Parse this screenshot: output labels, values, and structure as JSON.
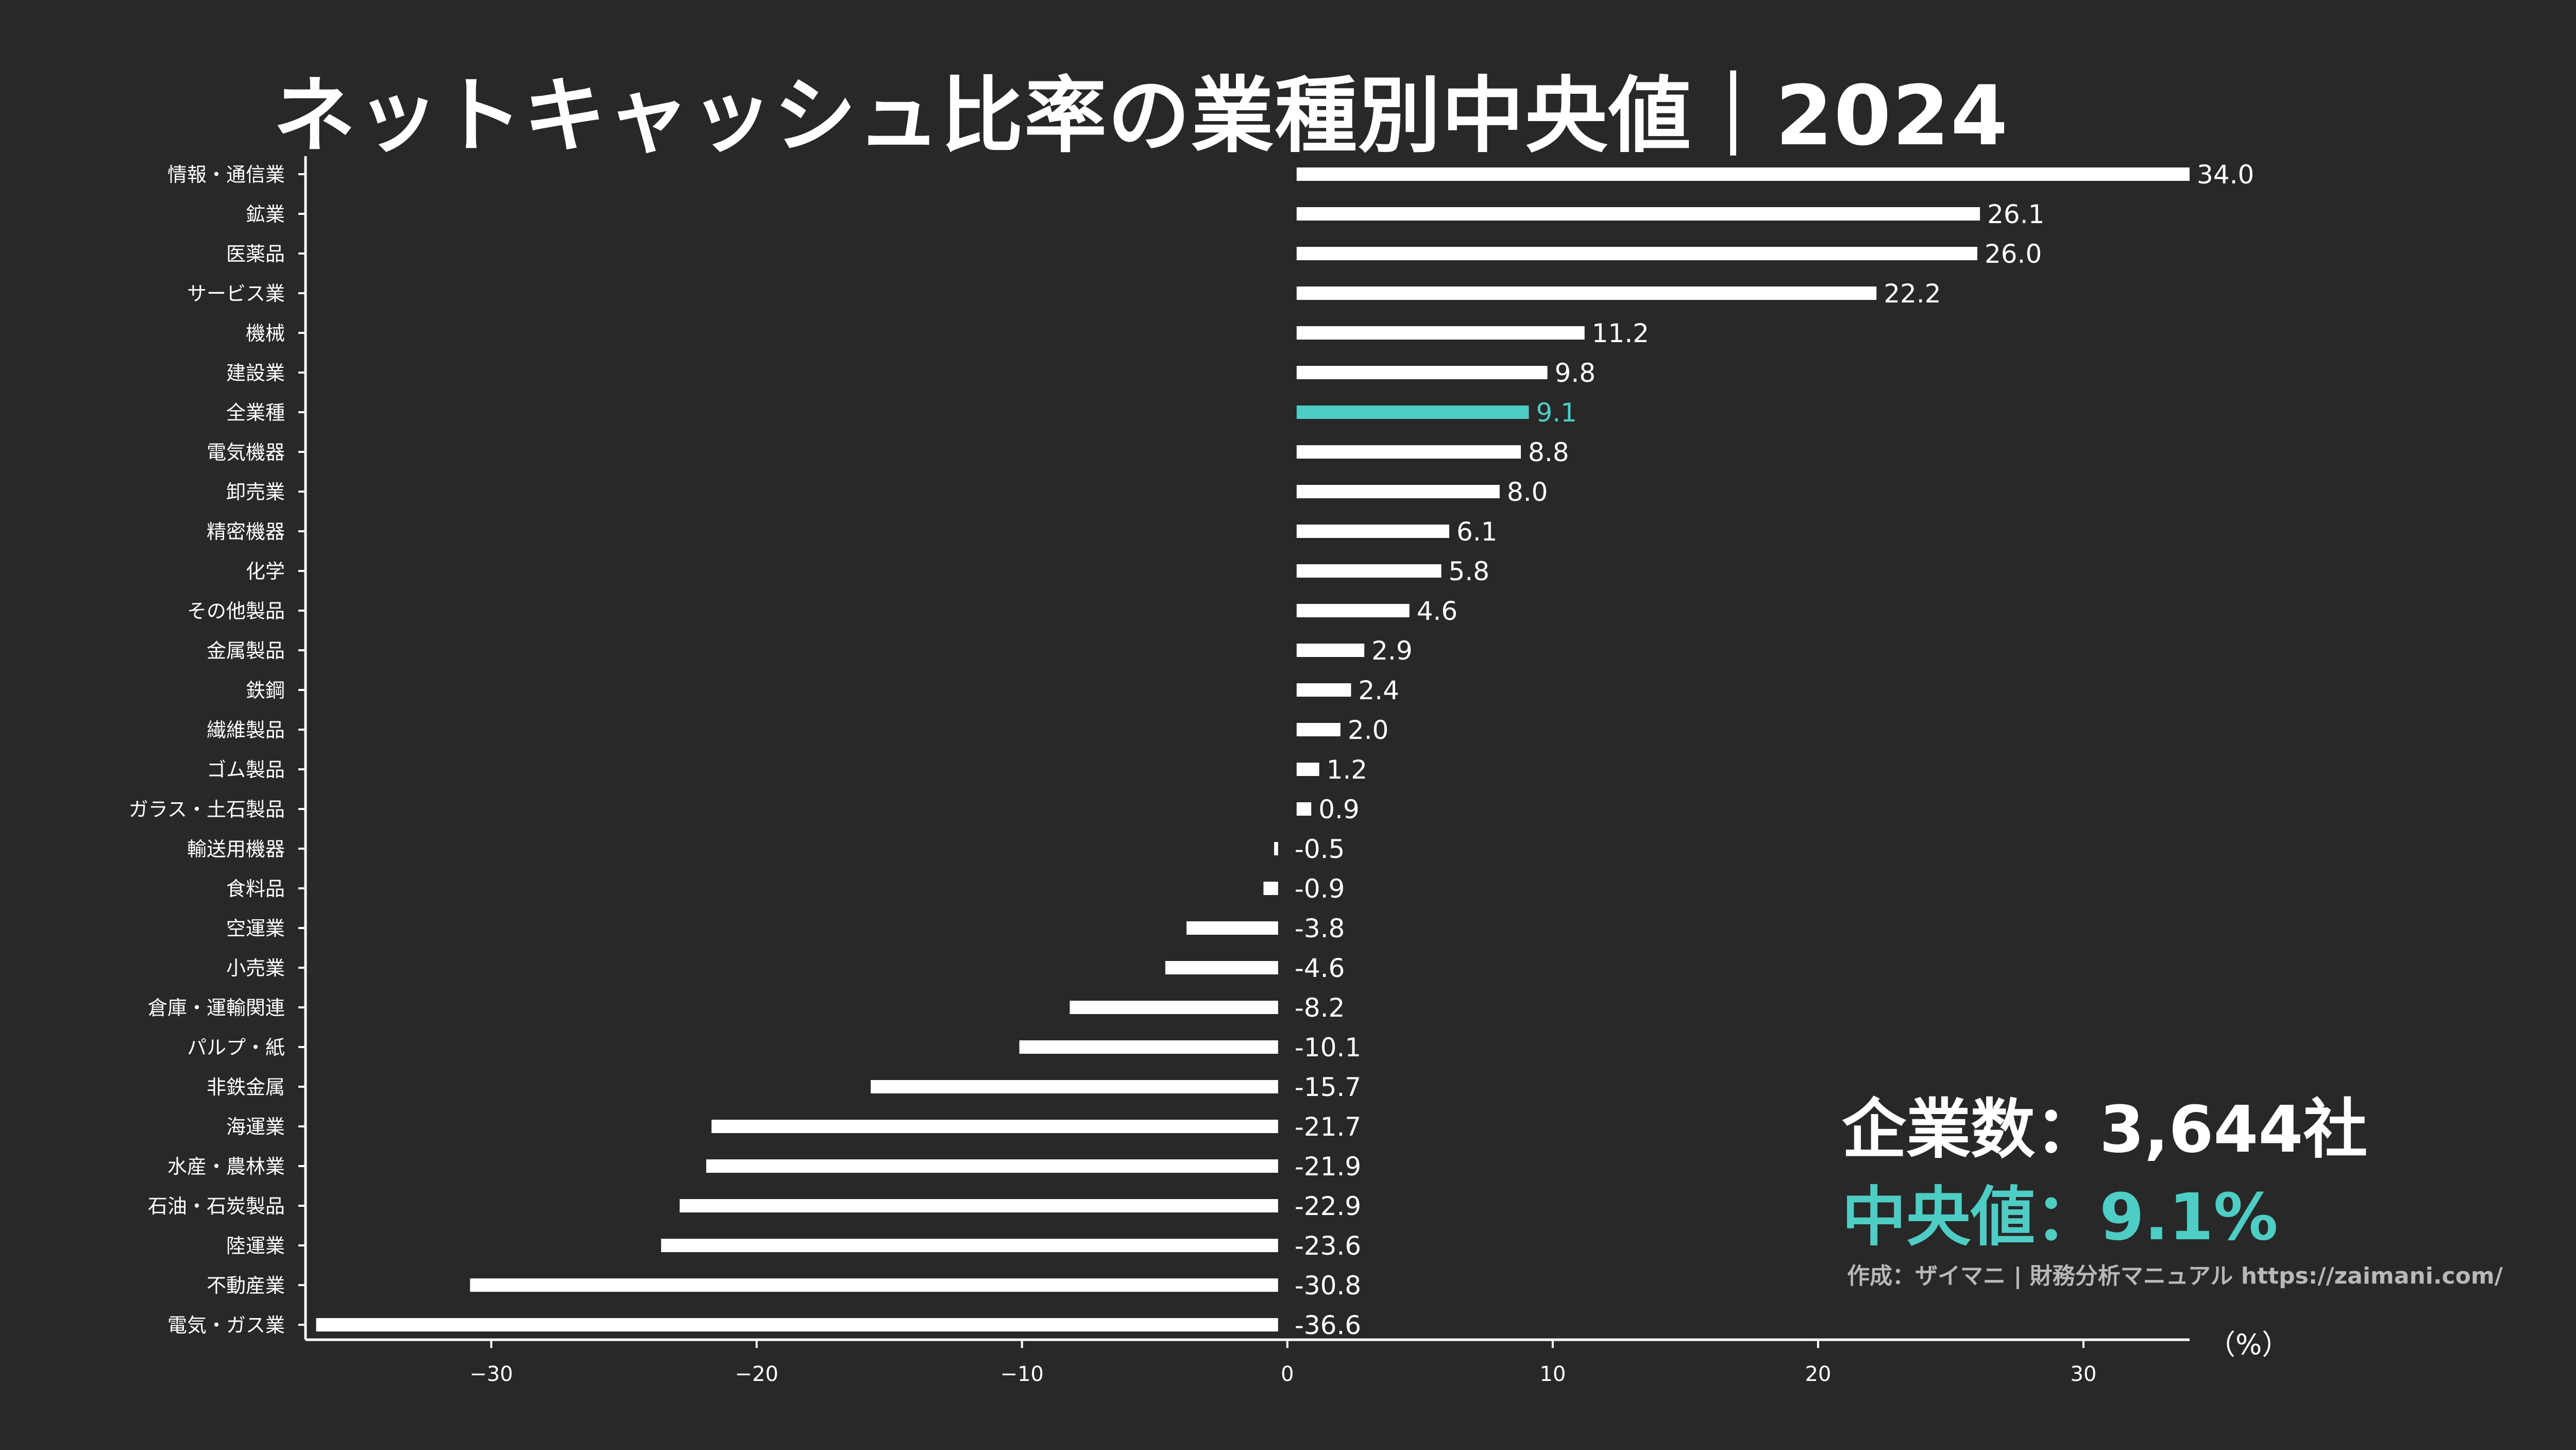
{
  "title": "ネットキャッシュ比率の業種別中央値｜2024",
  "summary": {
    "companies_label": "企業数：3,644社",
    "median_label": "中央値：9.1%"
  },
  "credit": "作成：ザイマニ | 財務分析マニュアル https://zaimani.com/",
  "unit_label": "（%）",
  "colors": {
    "background": "#282828",
    "bar": "#ffffff",
    "highlight": "#4ecdc4"
  },
  "chart_data": {
    "type": "bar",
    "orientation": "horizontal",
    "title": "ネットキャッシュ比率の業種別中央値｜2024",
    "xlabel": "（%）",
    "ylabel": "",
    "xlim": [
      -37,
      34
    ],
    "xticks": [
      -30,
      -20,
      -10,
      0,
      10,
      20,
      30
    ],
    "xtick_labels": [
      "−30",
      "−20",
      "−10",
      "0",
      "10",
      "20",
      "30"
    ],
    "grid": false,
    "highlight_category": "全業種",
    "categories": [
      "情報・通信業",
      "鉱業",
      "医薬品",
      "サービス業",
      "機械",
      "建設業",
      "全業種",
      "電気機器",
      "卸売業",
      "精密機器",
      "化学",
      "その他製品",
      "金属製品",
      "鉄鋼",
      "繊維製品",
      "ゴム製品",
      "ガラス・土石製品",
      "輸送用機器",
      "食料品",
      "空運業",
      "小売業",
      "倉庫・運輸関連",
      "パルプ・紙",
      "非鉄金属",
      "海運業",
      "水産・農林業",
      "石油・石炭製品",
      "陸運業",
      "不動産業",
      "電気・ガス業"
    ],
    "values": [
      34.0,
      26.1,
      26.0,
      22.2,
      11.2,
      9.8,
      9.1,
      8.8,
      8.0,
      6.1,
      5.8,
      4.6,
      2.9,
      2.4,
      2.0,
      1.2,
      0.9,
      -0.5,
      -0.9,
      -3.8,
      -4.6,
      -8.2,
      -10.1,
      -15.7,
      -21.7,
      -21.9,
      -22.9,
      -23.6,
      -30.8,
      -36.6
    ],
    "value_labels": [
      "34.0",
      "26.1",
      "26.0",
      "22.2",
      "11.2",
      "9.8",
      "9.1",
      "8.8",
      "8.0",
      "6.1",
      "5.8",
      "4.6",
      "2.9",
      "2.4",
      "2.0",
      "1.2",
      "0.9",
      "-0.5",
      "-0.9",
      "-3.8",
      "-4.6",
      "-8.2",
      "-10.1",
      "-15.7",
      "-21.7",
      "-21.9",
      "-22.9",
      "-23.6",
      "-30.8",
      "-36.6"
    ]
  }
}
